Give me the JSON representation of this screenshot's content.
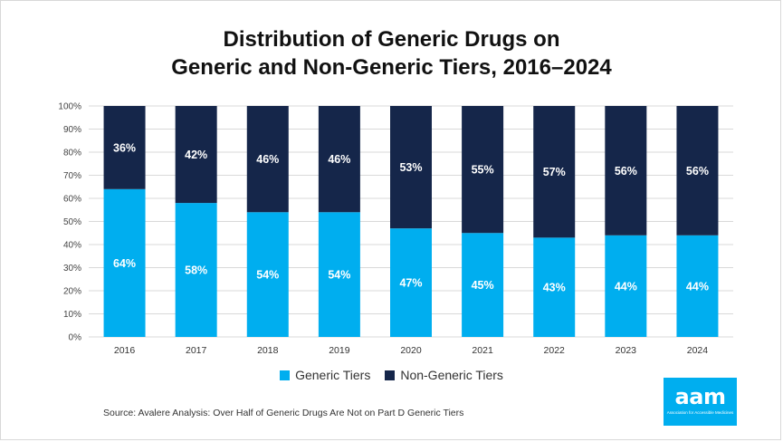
{
  "title_line1": "Distribution of Generic Drugs on",
  "title_line2": "Generic and Non-Generic Tiers, 2016–2024",
  "source": "Source: Avalere Analysis: Over Half of Generic Drugs Are Not on Part D Generic Tiers",
  "logo": {
    "word": "aam",
    "tagline": "Association for Accessible Medicines"
  },
  "colors": {
    "generic": "#00aeef",
    "non_generic": "#15264a",
    "grid": "#d9d9d9"
  },
  "chart_data": {
    "type": "bar",
    "stacked": true,
    "percent": true,
    "title": "Distribution of Generic Drugs on Generic and Non-Generic Tiers, 2016–2024",
    "categories": [
      "2016",
      "2017",
      "2018",
      "2019",
      "2020",
      "2021",
      "2022",
      "2023",
      "2024"
    ],
    "series": [
      {
        "name": "Generic Tiers",
        "values": [
          64,
          58,
          54,
          54,
          47,
          45,
          43,
          44,
          44
        ],
        "labels": [
          "64%",
          "58%",
          "54%",
          "54%",
          "47%",
          "45%",
          "43%",
          "44%",
          "44%"
        ]
      },
      {
        "name": "Non-Generic Tiers",
        "values": [
          36,
          42,
          46,
          46,
          53,
          55,
          57,
          56,
          56
        ],
        "labels": [
          "36%",
          "42%",
          "46%",
          "46%",
          "53%",
          "55%",
          "57%",
          "56%",
          "56%"
        ]
      }
    ],
    "ylim": [
      0,
      100
    ],
    "yticks": [
      "0%",
      "10%",
      "20%",
      "30%",
      "40%",
      "50%",
      "60%",
      "70%",
      "80%",
      "90%",
      "100%"
    ],
    "xlabel": "",
    "ylabel": "",
    "grid": true,
    "legend": "bottom-center"
  }
}
